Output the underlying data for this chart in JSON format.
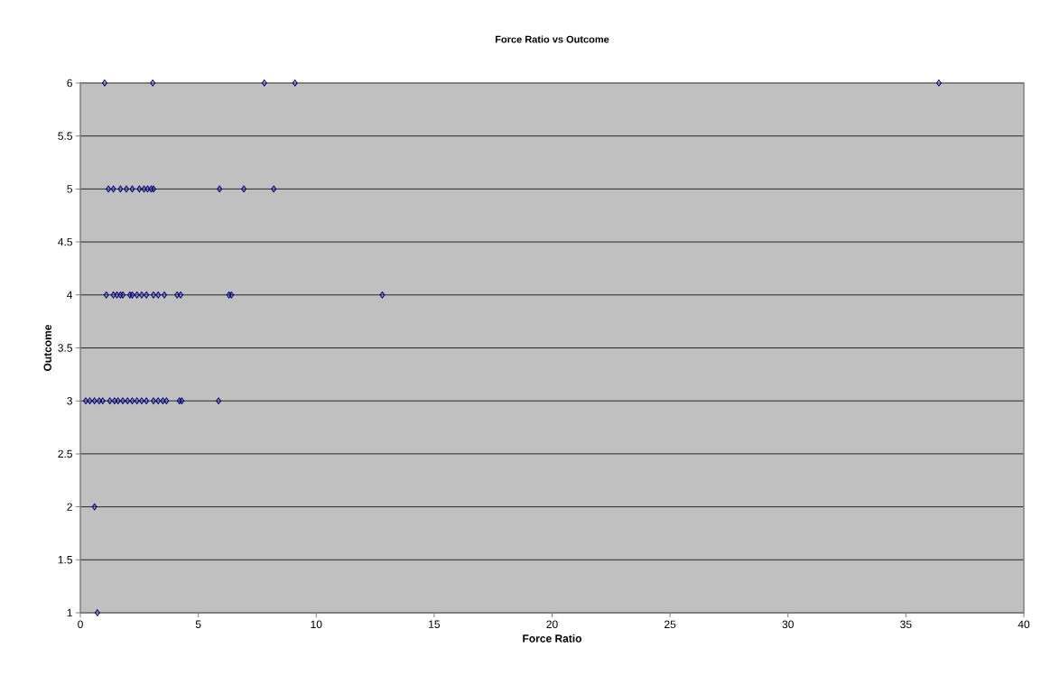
{
  "chart_data": {
    "type": "scatter",
    "title": "Force Ratio vs Outcome",
    "xlabel": "Force Ratio",
    "ylabel": "Outcome",
    "x": [
      1.03,
      3.07,
      7.8,
      9.1,
      36.4,
      1.19,
      1.4,
      1.7,
      1.95,
      2.2,
      2.5,
      2.7,
      2.85,
      3.0,
      3.1,
      5.9,
      6.93,
      8.2,
      1.1,
      1.4,
      1.55,
      1.7,
      1.8,
      2.1,
      2.2,
      2.4,
      2.6,
      2.8,
      3.1,
      3.3,
      3.56,
      4.1,
      4.25,
      6.3,
      6.4,
      12.8,
      0.23,
      0.4,
      0.6,
      0.8,
      0.95,
      1.25,
      1.45,
      1.6,
      1.8,
      2.0,
      2.2,
      2.4,
      2.6,
      2.8,
      3.1,
      3.3,
      3.5,
      3.65,
      4.2,
      4.3,
      5.86,
      0.6,
      0.72
    ],
    "values": [
      6,
      6,
      6,
      6,
      6,
      5,
      5,
      5,
      5,
      5,
      5,
      5,
      5,
      5,
      5,
      5,
      5,
      5,
      4,
      4,
      4,
      4,
      4,
      4,
      4,
      4,
      4,
      4,
      4,
      4,
      4,
      4,
      4,
      4,
      4,
      4,
      3,
      3,
      3,
      3,
      3,
      3,
      3,
      3,
      3,
      3,
      3,
      3,
      3,
      3,
      3,
      3,
      3,
      3,
      3,
      3,
      3,
      2,
      1
    ],
    "color": "#000080",
    "marker": "diamond",
    "grid": "y",
    "xlim": [
      0,
      40
    ],
    "ylim": [
      1,
      6
    ],
    "xticks": [
      0,
      5,
      10,
      15,
      20,
      25,
      30,
      35,
      40
    ],
    "yticks": [
      1,
      1.5,
      2,
      2.5,
      3,
      3.5,
      4,
      4.5,
      5,
      5.5,
      6
    ]
  }
}
